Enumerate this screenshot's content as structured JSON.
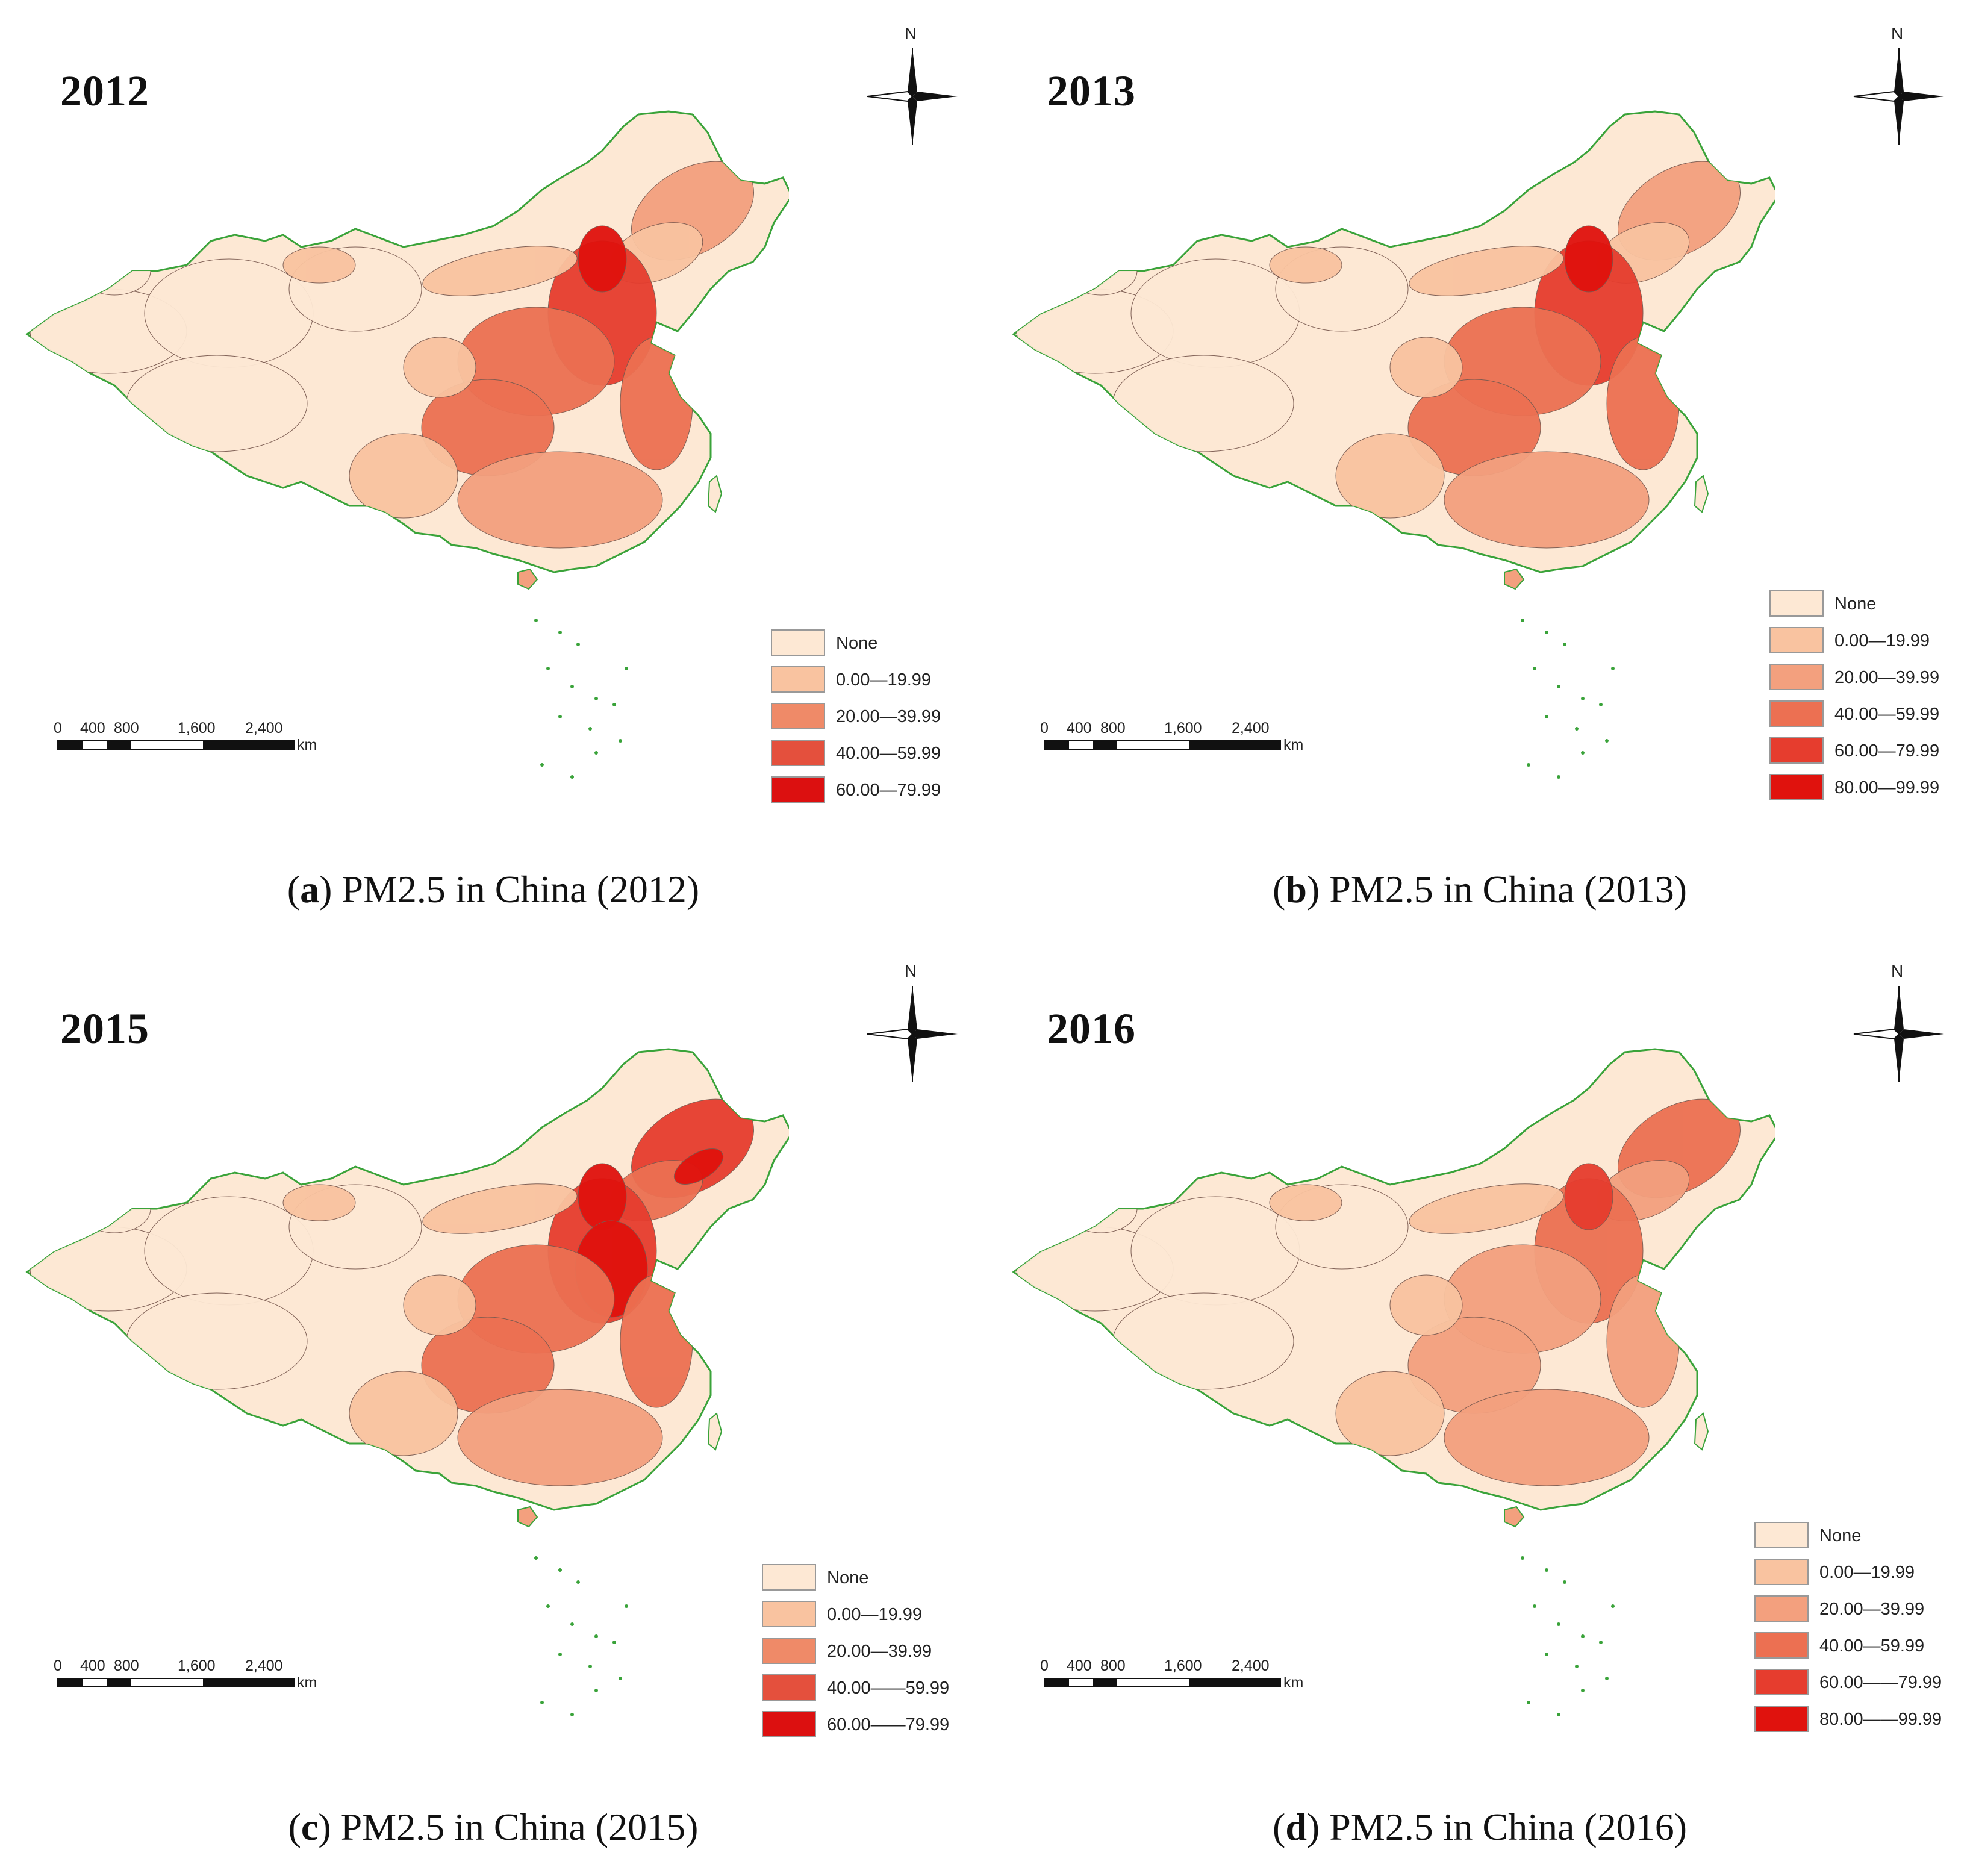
{
  "colors": {
    "none": "#fde8d4",
    "c1": "#f9c3a0",
    "c2": "#f3a07e",
    "c3": "#ec7052",
    "c4": "#e63d2e",
    "c5": "#e0120d",
    "border": "#3aa33a",
    "inner": "#7a5a50"
  },
  "scale": {
    "ticks": [
      "0",
      "400",
      "800",
      "1,600",
      "2,400"
    ],
    "unit": "km"
  },
  "compass_label": "N",
  "panels": [
    {
      "year": "2012",
      "caption_letter": "a",
      "caption_text": ") PM2.5 in China (2012)",
      "legend": [
        {
          "label": "None",
          "color": "#fde8d4"
        },
        {
          "label": "0.00—19.99",
          "color": "#f9c3a0"
        },
        {
          "label": "20.00—39.99",
          "color": "#ef8a68"
        },
        {
          "label": "40.00—59.99",
          "color": "#e4503d"
        },
        {
          "label": "60.00—79.99",
          "color": "#dc1010"
        }
      ]
    },
    {
      "year": "2013",
      "caption_letter": "b",
      "caption_text": ") PM2.5 in China (2013)",
      "legend": [
        {
          "label": "None",
          "color": "#fde8d4"
        },
        {
          "label": "0.00—19.99",
          "color": "#f9c3a0"
        },
        {
          "label": "20.00—39.99",
          "color": "#f3a07e"
        },
        {
          "label": "40.00—59.99",
          "color": "#ec7052"
        },
        {
          "label": "60.00—79.99",
          "color": "#e63d2e"
        },
        {
          "label": "80.00—99.99",
          "color": "#e0120d"
        }
      ]
    },
    {
      "year": "2015",
      "caption_letter": "c",
      "caption_text": ") PM2.5 in China (2015)",
      "legend": [
        {
          "label": "None",
          "color": "#fde8d4"
        },
        {
          "label": "0.00—19.99",
          "color": "#f9c3a0"
        },
        {
          "label": "20.00—39.99",
          "color": "#ef8a68"
        },
        {
          "label": "40.00——59.99",
          "color": "#e4503d"
        },
        {
          "label": "60.00——79.99",
          "color": "#dc1010"
        }
      ]
    },
    {
      "year": "2016",
      "caption_letter": "d",
      "caption_text": ") PM2.5 in China (2016)",
      "legend": [
        {
          "label": "None",
          "color": "#fde8d4"
        },
        {
          "label": "0.00—19.99",
          "color": "#f9c3a0"
        },
        {
          "label": "20.00—39.99",
          "color": "#f3a07e"
        },
        {
          "label": "40.00—59.99",
          "color": "#ec7052"
        },
        {
          "label": "60.00——79.99",
          "color": "#e63d2e"
        },
        {
          "label": "80.00——99.99",
          "color": "#e0120d"
        }
      ]
    }
  ]
}
